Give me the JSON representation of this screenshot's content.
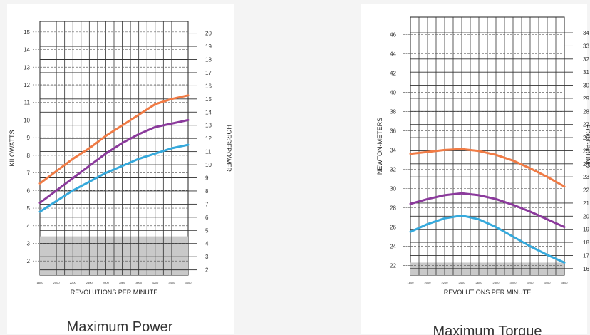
{
  "chart_data": [
    {
      "type": "line",
      "title": "Maximum Power",
      "xlabel": "REVOLUTIONS PER MINUTE",
      "ylabel": "KILOWATTS",
      "ylabel_right": "HORSEPOWER",
      "x": [
        1800,
        2000,
        2200,
        2400,
        2600,
        2800,
        3000,
        3200,
        3400,
        3600
      ],
      "xticks": [
        "1800",
        "2000",
        "2200",
        "2400",
        "2600",
        "2800",
        "3000",
        "3200",
        "3400",
        "3600"
      ],
      "xlim": [
        1800,
        3600
      ],
      "ylim": [
        1.2,
        15.6
      ],
      "yticks": [
        2,
        3,
        4,
        5,
        6,
        7,
        8,
        9,
        10,
        11,
        12,
        13,
        14,
        15
      ],
      "ylim_right": [
        1.6,
        20.9
      ],
      "yticks_right": [
        2,
        3,
        4,
        5,
        6,
        7,
        8,
        9,
        10,
        11,
        12,
        13,
        14,
        15,
        16,
        17,
        18,
        19,
        20
      ],
      "grid": true,
      "series": [
        {
          "color": "#f07b45",
          "values": [
            6.4,
            7.1,
            7.8,
            8.4,
            9.1,
            9.7,
            10.3,
            10.9,
            11.2,
            11.4
          ]
        },
        {
          "color": "#8b3a9c",
          "values": [
            5.3,
            6.0,
            6.7,
            7.4,
            8.1,
            8.7,
            9.2,
            9.6,
            9.8,
            10.0
          ]
        },
        {
          "color": "#35a9dc",
          "values": [
            4.8,
            5.4,
            6.0,
            6.5,
            7.0,
            7.4,
            7.8,
            8.1,
            8.4,
            8.6
          ]
        }
      ]
    },
    {
      "type": "line",
      "title": "Maximum Torque",
      "xlabel": "REVOLUTIONS PER MINUTE",
      "ylabel": "NEWTON-METERS",
      "ylabel_right": "FOOT-POUND",
      "x": [
        1800,
        2000,
        2200,
        2400,
        2600,
        2800,
        3000,
        3200,
        3400,
        3600
      ],
      "xticks": [
        "1800",
        "2000",
        "2200",
        "2400",
        "2600",
        "2800",
        "3000",
        "3200",
        "3400",
        "3600"
      ],
      "xlim": [
        1800,
        3600
      ],
      "ylim": [
        21.0,
        47.8
      ],
      "yticks": [
        22,
        24,
        26,
        28,
        30,
        32,
        34,
        36,
        38,
        40,
        42,
        44,
        46
      ],
      "ylim_right": [
        15.5,
        35.2
      ],
      "yticks_right": [
        16,
        17,
        18,
        19,
        20,
        21,
        22,
        23,
        24,
        25,
        26,
        27,
        28,
        29,
        30,
        31,
        32,
        33,
        34
      ],
      "grid": true,
      "series": [
        {
          "color": "#f07b45",
          "values": [
            33.6,
            33.8,
            34.0,
            34.1,
            33.9,
            33.5,
            32.9,
            32.1,
            31.2,
            30.2
          ]
        },
        {
          "color": "#8b3a9c",
          "values": [
            28.4,
            28.9,
            29.3,
            29.5,
            29.3,
            28.9,
            28.3,
            27.6,
            26.8,
            26.0
          ]
        },
        {
          "color": "#35a9dc",
          "values": [
            25.5,
            26.3,
            26.9,
            27.2,
            26.8,
            26.0,
            25.0,
            24.0,
            23.1,
            22.3
          ]
        }
      ]
    }
  ]
}
